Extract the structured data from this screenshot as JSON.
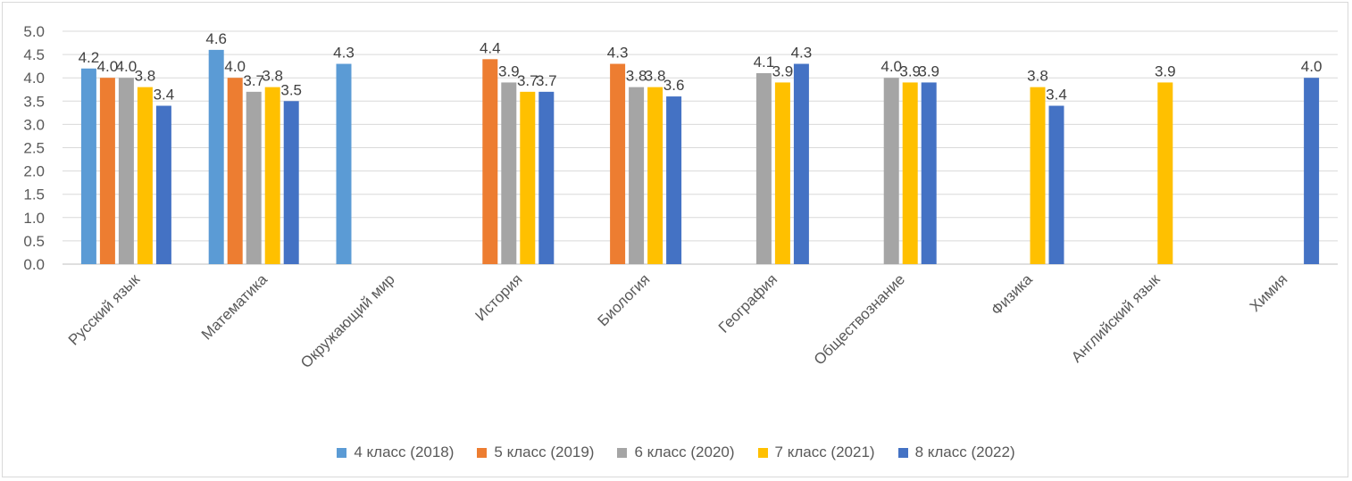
{
  "chart_data": {
    "type": "bar",
    "title": "",
    "xlabel": "",
    "ylabel": "",
    "ylim": [
      0,
      5
    ],
    "y_ticks": [
      "0.0",
      "0.5",
      "1.0",
      "1.5",
      "2.0",
      "2.5",
      "3.0",
      "3.5",
      "4.0",
      "4.5",
      "5.0"
    ],
    "grid": true,
    "legend_position": "bottom",
    "categories": [
      "Русский язык",
      "Математика",
      "Окружающий мир",
      "История",
      "Биология",
      "География",
      "Обществознание",
      "Физика",
      "Английский язык",
      "Химия"
    ],
    "series": [
      {
        "name": "4 класс (2018)",
        "color": "#5B9BD5",
        "values": [
          4.2,
          4.6,
          4.3,
          null,
          null,
          null,
          null,
          null,
          null,
          null
        ],
        "labels": [
          "4.2",
          "4.6",
          "4.3",
          null,
          null,
          null,
          null,
          null,
          null,
          null
        ]
      },
      {
        "name": "5 класс (2019)",
        "color": "#ED7D31",
        "values": [
          4.0,
          4.0,
          null,
          4.4,
          4.3,
          null,
          null,
          null,
          null,
          null
        ],
        "labels": [
          "4.0",
          "4.0",
          null,
          "4.4",
          "4.3",
          null,
          null,
          null,
          null,
          null
        ]
      },
      {
        "name": "6 класс (2020)",
        "color": "#A5A5A5",
        "values": [
          4.0,
          3.7,
          null,
          3.9,
          3.8,
          4.1,
          4.0,
          null,
          null,
          null
        ],
        "labels": [
          "4.0",
          "3.7",
          null,
          "3.9",
          "3.8",
          "4.1",
          "4.0",
          null,
          null,
          null
        ]
      },
      {
        "name": "7 класс (2021)",
        "color": "#FFC000",
        "values": [
          3.8,
          3.8,
          null,
          3.7,
          3.8,
          3.9,
          3.9,
          3.8,
          3.9,
          null
        ],
        "labels": [
          "3.8",
          "3.8",
          null,
          "3.7",
          "3.8",
          "3.9",
          "3.9",
          "3.8",
          "3.9",
          null
        ]
      },
      {
        "name": "8 класс (2022)",
        "color": "#4472C4",
        "values": [
          3.4,
          3.5,
          null,
          3.7,
          3.6,
          4.3,
          3.9,
          3.4,
          null,
          4.0
        ],
        "labels": [
          "3.4",
          "3.5",
          null,
          "3.7",
          "3.6",
          "4.3",
          "3.9",
          "3.4",
          null,
          "4.0"
        ]
      }
    ],
    "colors": {
      "gridline": "#d9d9d9",
      "axis": "#bfbfbf",
      "text": "#595959"
    }
  }
}
